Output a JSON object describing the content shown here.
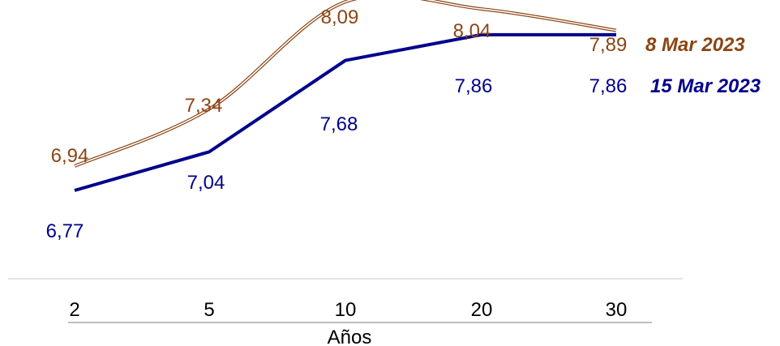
{
  "chart_data": {
    "type": "line",
    "categories": [
      "2",
      "5",
      "10",
      "20",
      "30"
    ],
    "xlabel": "Años",
    "ylabel": "",
    "title": "",
    "ylim": [
      6.4,
      8.3
    ],
    "grid": false,
    "legend_position": "right",
    "series": [
      {
        "name": "8 Mar 2023",
        "values": [
          6.94,
          7.34,
          8.09,
          8.04,
          7.89
        ],
        "labels": [
          "6,94",
          "7,34",
          "8,09",
          "8,04",
          "7,89"
        ],
        "color": "#8B4513",
        "style": "double-smooth"
      },
      {
        "name": "15 Mar 2023",
        "values": [
          6.77,
          7.04,
          7.68,
          7.86,
          7.86
        ],
        "labels": [
          "6,77",
          "7,04",
          "7,68",
          "7,86",
          "7,86"
        ],
        "color": "#00008B",
        "style": "solid-straight"
      }
    ]
  }
}
